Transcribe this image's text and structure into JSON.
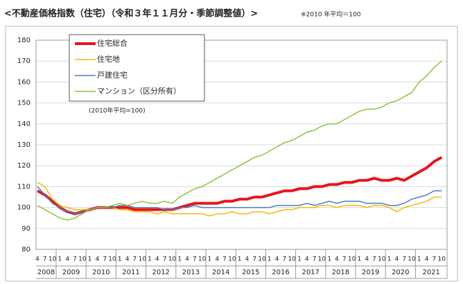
{
  "chart_data": {
    "type": "line",
    "title": "<不動産価格指数（住宅）（令和３年１１月分・季節調整値）>",
    "subtitle": "※2010 年平均＝100",
    "annotation": "(2010年平均=100)",
    "categories": [
      "4",
      "7",
      "10",
      "1",
      "4",
      "7",
      "10",
      "1",
      "4",
      "7",
      "10",
      "1",
      "4",
      "7",
      "10",
      "1",
      "4",
      "7",
      "10",
      "1",
      "4",
      "7",
      "10",
      "1",
      "4",
      "7",
      "10",
      "1",
      "4",
      "7",
      "10",
      "1",
      "4",
      "7",
      "10",
      "1",
      "4",
      "7",
      "10",
      "1",
      "4",
      "7",
      "10",
      "1",
      "4",
      "7",
      "10",
      "1",
      "4",
      "7",
      "10",
      "1",
      "4",
      "7",
      "10"
    ],
    "years": [
      "2008",
      "2009",
      "2010",
      "2011",
      "2012",
      "2013",
      "2014",
      "2015",
      "2016",
      "2017",
      "2018",
      "2019",
      "2020",
      "2021"
    ],
    "ylim": [
      80,
      180
    ],
    "yticks": [
      80,
      90,
      100,
      110,
      120,
      130,
      140,
      150,
      160,
      170,
      180
    ],
    "series": [
      {
        "name": "住宅総合",
        "color": "#e8141c",
        "width": 4,
        "values": [
          108,
          106,
          103,
          100,
          98,
          97,
          98,
          99,
          100,
          100,
          100,
          100,
          100,
          99,
          99,
          99,
          99,
          99,
          99,
          100,
          101,
          102,
          102,
          102,
          102,
          103,
          103,
          104,
          104,
          105,
          105,
          106,
          107,
          108,
          108,
          109,
          109,
          110,
          110,
          111,
          111,
          112,
          112,
          113,
          113,
          114,
          113,
          113,
          114,
          113,
          115,
          117,
          119,
          122,
          124
        ]
      },
      {
        "name": "住宅地",
        "color": "#f5b800",
        "width": 1.5,
        "values": [
          112,
          110,
          104,
          101,
          100,
          99,
          99,
          99,
          100,
          100,
          100,
          99,
          99,
          98,
          98,
          98,
          97,
          98,
          97,
          97,
          97,
          97,
          97,
          96,
          97,
          97,
          98,
          97,
          97,
          98,
          98,
          97,
          98,
          99,
          99,
          100,
          100,
          100,
          101,
          101,
          100,
          101,
          101,
          101,
          100,
          101,
          101,
          100,
          98,
          100,
          101,
          102,
          103,
          105,
          105
        ]
      },
      {
        "name": "戸建住宅",
        "color": "#4a7ebb",
        "width": 1.5,
        "values": [
          110,
          106,
          102,
          100,
          98,
          97,
          98,
          99,
          100,
          100,
          100,
          101,
          101,
          100,
          100,
          100,
          100,
          99,
          99,
          100,
          100,
          101,
          100,
          100,
          100,
          100,
          100,
          100,
          100,
          100,
          100,
          100,
          101,
          101,
          101,
          101,
          102,
          101,
          102,
          103,
          102,
          103,
          103,
          103,
          102,
          102,
          102,
          101,
          101,
          102,
          104,
          105,
          106,
          108,
          108
        ]
      },
      {
        "name": "マンション（区分所有）",
        "color": "#8cc43c",
        "width": 1.5,
        "values": [
          101,
          99,
          97,
          95,
          94,
          95,
          97,
          99,
          100,
          100,
          101,
          102,
          101,
          102,
          103,
          102,
          102,
          103,
          102,
          105,
          107,
          109,
          110,
          112,
          114,
          116,
          118,
          120,
          122,
          124,
          125,
          127,
          129,
          131,
          132,
          134,
          136,
          137,
          139,
          140,
          140,
          142,
          144,
          146,
          147,
          147,
          148,
          150,
          151,
          153,
          155,
          160,
          163,
          167,
          170
        ]
      }
    ]
  }
}
